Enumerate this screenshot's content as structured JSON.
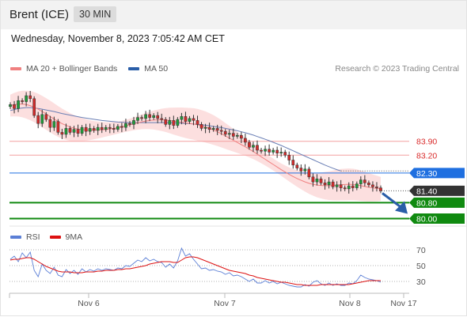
{
  "header": {
    "instrument": "Brent (ICE)",
    "interval": "30 MIN"
  },
  "timestamp": "Wednesday, November 8, 2023 7:05:42 AM CET",
  "legend": {
    "items": [
      {
        "label": "MA 20 + Bollinger Bands",
        "color": "#f08080"
      },
      {
        "label": "MA 50",
        "color": "#2a5ea8"
      }
    ],
    "copyright": "Research © 2023 Trading Central"
  },
  "rsi_legend": {
    "items": [
      {
        "label": "RSI",
        "color": "#5b7fd6"
      },
      {
        "label": "9MA",
        "color": "#dd1111"
      }
    ]
  },
  "chart_data": [
    {
      "type": "candlestick",
      "title": "Brent (ICE)",
      "x_tick_labels": [
        "Nov 6",
        "Nov 7",
        "Nov 8",
        "Nov 17"
      ],
      "ylim": [
        79.7,
        86.8
      ],
      "price_levels": [
        {
          "value": 83.9,
          "label": "83.90",
          "style": "resistance",
          "color": "#f4a0a0"
        },
        {
          "value": 83.2,
          "label": "83.20",
          "style": "resistance",
          "color": "#f4a0a0"
        },
        {
          "value": 82.3,
          "label": "82.30",
          "style": "pivot",
          "color": "#1f6fe0"
        },
        {
          "value": 81.4,
          "label": "81.40",
          "style": "last",
          "color": "#333333"
        },
        {
          "value": 80.8,
          "label": "80.80",
          "style": "support",
          "color": "#108a10"
        },
        {
          "value": 80.0,
          "label": "80.00",
          "style": "support",
          "color": "#108a10"
        }
      ],
      "closes": [
        85.75,
        85.55,
        85.95,
        85.9,
        86.2,
        86.05,
        85.2,
        84.8,
        85.25,
        85.0,
        84.6,
        84.9,
        84.35,
        84.25,
        84.55,
        84.35,
        84.5,
        84.3,
        84.6,
        84.4,
        84.55,
        84.45,
        84.6,
        84.5,
        84.6,
        84.55,
        84.5,
        84.65,
        84.6,
        84.8,
        84.75,
        84.95,
        85.1,
        85.05,
        85.25,
        85.1,
        85.2,
        85.05,
        85.0,
        84.75,
        84.95,
        84.7,
        85.0,
        85.15,
        84.9,
        85.05,
        84.95,
        84.75,
        84.55,
        84.6,
        84.5,
        84.55,
        84.45,
        84.4,
        84.25,
        84.3,
        84.15,
        84.2,
        84.05,
        83.85,
        83.6,
        83.7,
        83.45,
        83.4,
        83.5,
        83.35,
        83.45,
        83.3,
        83.35,
        83.2,
        82.95,
        82.7,
        82.55,
        82.4,
        82.5,
        82.1,
        81.85,
        82.0,
        81.8,
        81.7,
        81.85,
        81.6,
        81.7,
        81.55,
        81.5,
        81.65,
        81.55,
        81.75,
        81.95,
        81.8,
        81.7,
        81.6,
        81.55,
        81.4
      ],
      "ma50": [
        85.45,
        85.5,
        85.55,
        85.58,
        85.6,
        85.6,
        85.58,
        85.55,
        85.52,
        85.48,
        85.44,
        85.4,
        85.35,
        85.3,
        85.26,
        85.22,
        85.18,
        85.14,
        85.1,
        85.07,
        85.04,
        85.01,
        84.98,
        84.95,
        84.93,
        84.91,
        84.89,
        84.87,
        84.86,
        84.85,
        84.84,
        84.84,
        84.84,
        84.84,
        84.84,
        84.84,
        84.84,
        84.84,
        84.84,
        84.84,
        84.84,
        84.83,
        84.82,
        84.81,
        84.8,
        84.79,
        84.77,
        84.75,
        84.73,
        84.71,
        84.68,
        84.65,
        84.62,
        84.59,
        84.55,
        84.51,
        84.47,
        84.43,
        84.38,
        84.33,
        84.27,
        84.21,
        84.14,
        84.07,
        84.0,
        83.93,
        83.85,
        83.77,
        83.69,
        83.6,
        83.51,
        83.42,
        83.33,
        83.24,
        83.15,
        83.06,
        82.97,
        82.88,
        82.79,
        82.7,
        82.62,
        82.54,
        82.47,
        82.4
      ],
      "ma20": [
        85.7,
        85.75,
        85.78,
        85.78,
        85.75,
        85.7,
        85.62,
        85.52,
        85.4,
        85.28,
        85.15,
        85.02,
        84.9,
        84.79,
        84.7,
        84.62,
        84.56,
        84.52,
        84.49,
        84.47,
        84.46,
        84.46,
        84.47,
        84.48,
        84.5,
        84.52,
        84.55,
        84.59,
        84.63,
        84.68,
        84.73,
        84.78,
        84.83,
        84.88,
        84.92,
        84.95,
        84.97,
        84.98,
        84.98,
        84.97,
        84.95,
        84.92,
        84.89,
        84.86,
        84.83,
        84.8,
        84.77,
        84.73,
        84.68,
        84.62,
        84.55,
        84.47,
        84.38,
        84.28,
        84.17,
        84.06,
        83.95,
        83.84,
        83.73,
        83.62,
        83.5,
        83.38,
        83.25,
        83.12,
        82.99,
        82.86,
        82.73,
        82.6,
        82.47,
        82.35,
        82.23,
        82.12,
        82.02,
        81.93,
        81.85,
        81.78,
        81.73,
        81.69,
        81.67,
        81.66,
        81.66,
        81.67,
        81.69,
        81.71,
        81.72,
        81.73,
        81.72,
        81.7,
        81.66,
        81.62,
        81.58,
        81.55,
        81.52,
        81.5
      ]
    },
    {
      "type": "line",
      "title": "RSI",
      "x_tick_labels": [
        "Nov 6",
        "Nov 7",
        "Nov 8",
        "Nov 17"
      ],
      "y_ticks": [
        70,
        50,
        30
      ],
      "ylim": [
        15,
        80
      ],
      "series": [
        {
          "name": "RSI",
          "color": "#5b7fd6",
          "values": [
            58,
            62,
            55,
            66,
            60,
            67,
            44,
            36,
            52,
            44,
            40,
            48,
            38,
            36,
            45,
            40,
            44,
            39,
            46,
            42,
            45,
            43,
            46,
            44,
            46,
            45,
            44,
            47,
            46,
            50,
            49,
            53,
            57,
            55,
            60,
            56,
            58,
            55,
            54,
            48,
            52,
            47,
            56,
            72,
            62,
            65,
            58,
            52,
            46,
            47,
            44,
            45,
            43,
            42,
            39,
            41,
            37,
            38,
            36,
            33,
            30,
            33,
            28,
            28,
            31,
            28,
            30,
            27,
            29,
            27,
            25,
            24,
            23,
            23,
            26,
            24,
            29,
            31,
            27,
            25,
            28,
            25,
            27,
            25,
            25,
            28,
            27,
            31,
            38,
            35,
            33,
            32,
            31,
            29
          ]
        },
        {
          "name": "9MA",
          "color": "#dd1111",
          "values": [
            57,
            58,
            58,
            59,
            60,
            60,
            58,
            55,
            52,
            49,
            47,
            45,
            43,
            42,
            42,
            42,
            41,
            41,
            41,
            42,
            42,
            42,
            43,
            43,
            44,
            44,
            44,
            45,
            45,
            46,
            46,
            47,
            48,
            49,
            50,
            52,
            53,
            54,
            55,
            55,
            55,
            54,
            54,
            57,
            60,
            61,
            61,
            60,
            58,
            56,
            54,
            52,
            50,
            48,
            46,
            44,
            43,
            42,
            41,
            40,
            38,
            37,
            35,
            34,
            33,
            32,
            31,
            30,
            29,
            29,
            28,
            27,
            26,
            26,
            25,
            25,
            25,
            25,
            26,
            26,
            26,
            26,
            26,
            26,
            26,
            26,
            27,
            28,
            29,
            30,
            31,
            31,
            31,
            31
          ]
        }
      ]
    }
  ]
}
